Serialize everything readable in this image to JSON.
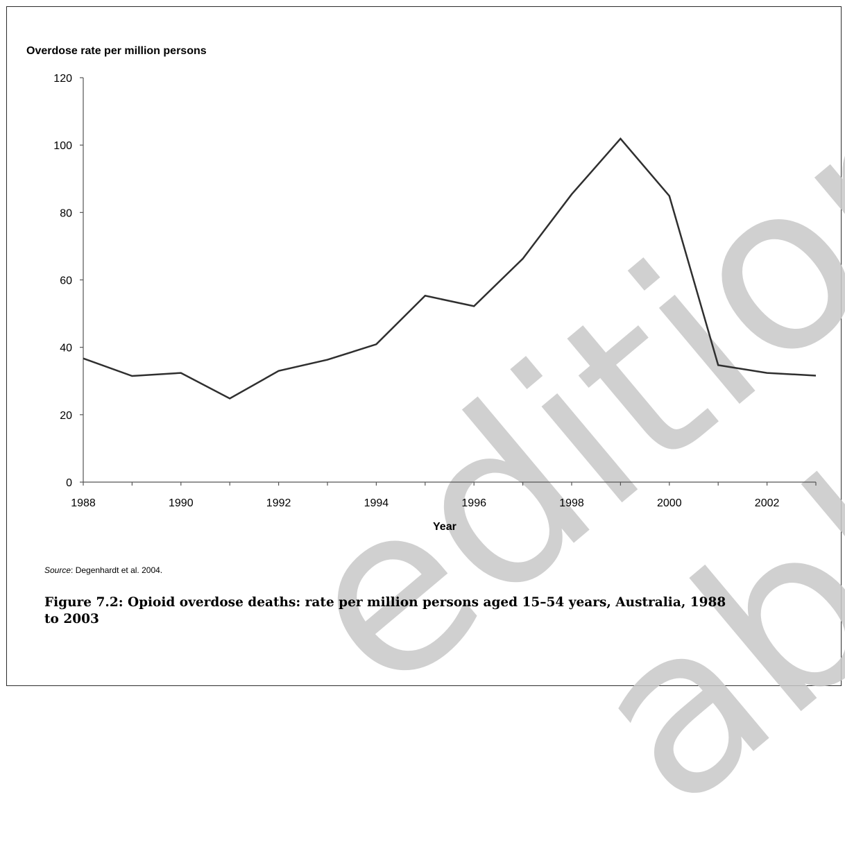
{
  "chart_data": {
    "type": "line",
    "ylabel": "Overdose rate per million persons",
    "xlabel": "Year",
    "x": [
      1988,
      1989,
      1990,
      1991,
      1992,
      1993,
      1994,
      1995,
      1996,
      1997,
      1998,
      1999,
      2000,
      2001,
      2002,
      2003
    ],
    "series": [
      {
        "values": [
          36.7,
          31.5,
          32.4,
          24.8,
          33.0,
          36.3,
          40.9,
          55.3,
          52.2,
          66.3,
          85.4,
          101.9,
          84.9,
          34.7,
          32.4,
          31.6
        ]
      }
    ],
    "ylim": [
      0,
      120
    ],
    "yticks": [
      0,
      20,
      40,
      60,
      80,
      100,
      120
    ],
    "xlim": [
      1988,
      2003
    ],
    "xticks": [
      1988,
      1990,
      1992,
      1994,
      1996,
      1998,
      2000,
      2002
    ],
    "grid": false,
    "line_color": "#2f2f2f"
  },
  "source": {
    "label": "Source",
    "text": ": Degenhardt et al. 2004."
  },
  "caption": "Figure 7.2: Opioid overdose deaths: rate per million persons aged 15–54 years, Australia, 1988 to 2003",
  "watermark": {
    "word1": "edition",
    "word2": "able",
    "color": "#c8c8c8"
  }
}
